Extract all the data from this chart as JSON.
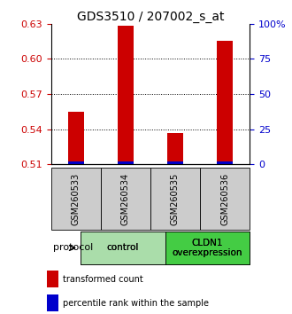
{
  "title": "GDS3510 / 207002_s_at",
  "samples": [
    "GSM260533",
    "GSM260534",
    "GSM260535",
    "GSM260536"
  ],
  "red_values": [
    0.555,
    0.628,
    0.537,
    0.615
  ],
  "blue_percentiles": [
    2,
    2,
    2,
    2
  ],
  "ymin": 0.51,
  "ymax": 0.63,
  "yticks_left": [
    0.51,
    0.54,
    0.57,
    0.6,
    0.63
  ],
  "yticks_right": [
    0,
    25,
    50,
    75,
    100
  ],
  "grid_values": [
    0.54,
    0.57,
    0.6
  ],
  "red_color": "#cc0000",
  "blue_color": "#0000cc",
  "groups": [
    {
      "label": "control",
      "samples": [
        0,
        1
      ],
      "color": "#aaddaa"
    },
    {
      "label": "CLDN1\noverexpression",
      "samples": [
        2,
        3
      ],
      "color": "#44cc44"
    }
  ],
  "protocol_label": "protocol",
  "legend_red": "transformed count",
  "legend_blue": "percentile rank within the sample",
  "title_fontsize": 10,
  "tick_fontsize": 8,
  "sample_box_color": "#cccccc"
}
